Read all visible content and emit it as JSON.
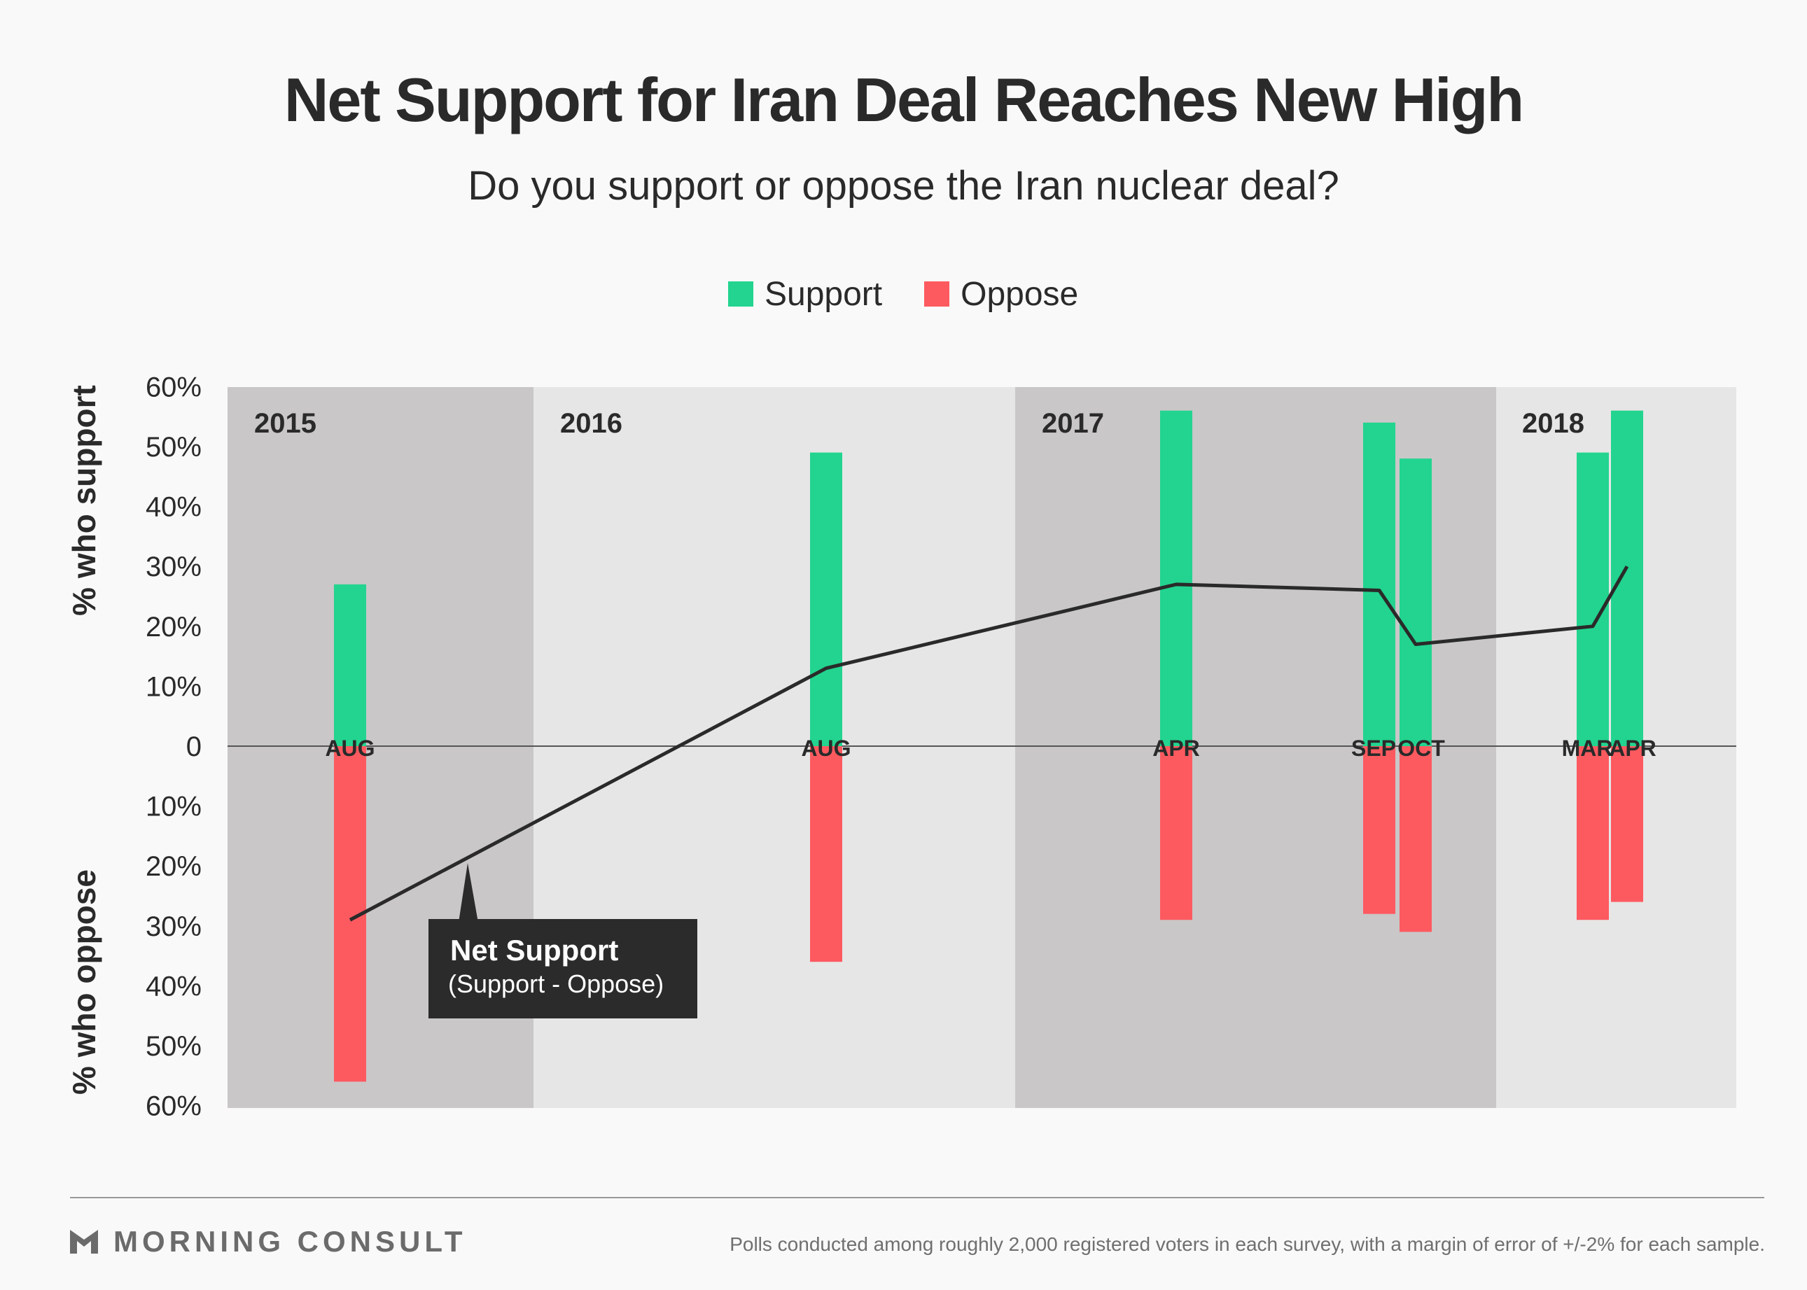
{
  "title": "Net Support for Iran Deal Reaches New High",
  "subtitle": "Do you support or oppose the Iran nuclear deal?",
  "colors": {
    "support": "#22d48f",
    "oppose": "#fd5a60",
    "band_dark": "#c9c7c8",
    "band_light": "#e6e6e6",
    "line": "#2a2a2a",
    "callout_bg": "#2b2b2b"
  },
  "chart_data": {
    "type": "bar",
    "legend": [
      "Support",
      "Oppose"
    ],
    "legend_position": "top-center",
    "ylabel_top": "% who support",
    "ylabel_bottom": "% who oppose",
    "ylim": [
      -60,
      60
    ],
    "y_ticks": [
      {
        "value": 60,
        "label": "60%"
      },
      {
        "value": 50,
        "label": "50%"
      },
      {
        "value": 40,
        "label": "40%"
      },
      {
        "value": 30,
        "label": "30%"
      },
      {
        "value": 20,
        "label": "20%"
      },
      {
        "value": 10,
        "label": "10%"
      },
      {
        "value": 0,
        "label": "0"
      },
      {
        "value": -10,
        "label": "10%"
      },
      {
        "value": -20,
        "label": "20%"
      },
      {
        "value": -30,
        "label": "30%"
      },
      {
        "value": -40,
        "label": "40%"
      },
      {
        "value": -50,
        "label": "50%"
      },
      {
        "value": -60,
        "label": "60%"
      }
    ],
    "years": [
      "2015",
      "2016",
      "2017",
      "2018"
    ],
    "polls": [
      {
        "year": "2015",
        "month": "AUG",
        "support": 27,
        "oppose": 56,
        "net": -29
      },
      {
        "year": "2016",
        "month": "AUG",
        "support": 49,
        "oppose": 36,
        "net": 13
      },
      {
        "year": "2017",
        "month": "APR",
        "support": 56,
        "oppose": 29,
        "net": 27
      },
      {
        "year": "2017",
        "month": "SEP",
        "support": 54,
        "oppose": 28,
        "net": 26
      },
      {
        "year": "2017",
        "month": "OCT",
        "support": 48,
        "oppose": 31,
        "net": 17
      },
      {
        "year": "2018",
        "month": "MAR",
        "support": 49,
        "oppose": 29,
        "net": 20
      },
      {
        "year": "2018",
        "month": "APR",
        "support": 56,
        "oppose": 26,
        "net": 30
      }
    ],
    "net_series_name": "Net Support",
    "annotation": {
      "title": "Net Support",
      "subtitle": "(Support - Oppose)"
    }
  },
  "brand": "MORNING CONSULT",
  "footnote": "Polls conducted among roughly 2,000 registered voters in each survey, with a margin of error of +/-2% for each sample."
}
